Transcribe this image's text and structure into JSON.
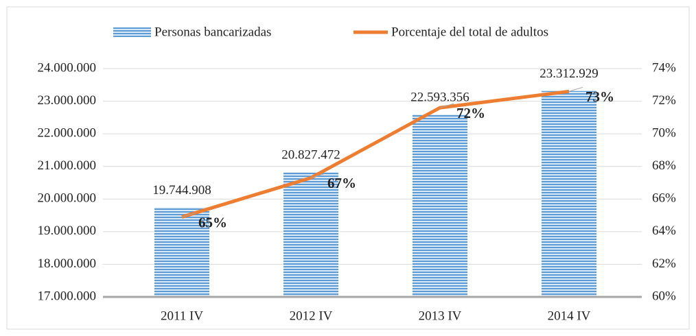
{
  "chart_data": {
    "type": "bar",
    "categories": [
      "2011 IV",
      "2012 IV",
      "2013 IV",
      "2014 IV"
    ],
    "series": [
      {
        "name": "Personas bancarizadas",
        "type": "bar",
        "color": "#5b9bd5",
        "values": [
          19744908,
          20827472,
          22593356,
          23312929
        ],
        "value_labels": [
          "19.744.908",
          "20.827.472",
          "22.593.356",
          "23.312.929"
        ]
      },
      {
        "name": "Porcentaje del total de adultos",
        "type": "line",
        "axis": "y2",
        "color": "#ed7d31",
        "values": [
          64.9,
          67.3,
          71.6,
          72.6
        ],
        "value_labels": [
          "65%",
          "67%",
          "72%",
          "73%"
        ]
      }
    ],
    "ylim": [
      17000000,
      24000000
    ],
    "yticks": [
      {
        "value": 17000000,
        "label": "17.000.000"
      },
      {
        "value": 18000000,
        "label": "18.000.000"
      },
      {
        "value": 19000000,
        "label": "19.000.000"
      },
      {
        "value": 20000000,
        "label": "20.000.000"
      },
      {
        "value": 21000000,
        "label": "21.000.000"
      },
      {
        "value": 22000000,
        "label": "22.000.000"
      },
      {
        "value": 23000000,
        "label": "23.000.000"
      },
      {
        "value": 24000000,
        "label": "24.000.000"
      }
    ],
    "y2lim": [
      60,
      74
    ],
    "y2ticks": [
      {
        "value": 60,
        "label": "60%"
      },
      {
        "value": 62,
        "label": "62%"
      },
      {
        "value": 64,
        "label": "64%"
      },
      {
        "value": 66,
        "label": "66%"
      },
      {
        "value": 68,
        "label": "68%"
      },
      {
        "value": 70,
        "label": "70%"
      },
      {
        "value": 72,
        "label": "72%"
      },
      {
        "value": 74,
        "label": "74%"
      }
    ],
    "grid": true,
    "legend": "top"
  }
}
